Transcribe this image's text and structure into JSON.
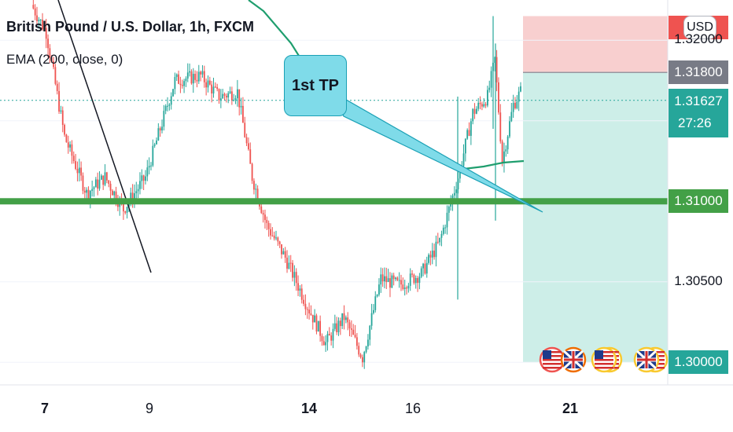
{
  "header": {
    "title": "British Pound / U.S. Dollar, 1h, FXCM",
    "ema_label": "EMA (200, close, 0)",
    "currency_button": "USD"
  },
  "annotation": {
    "text": "1st TP",
    "target_price": 1.31
  },
  "price_axis": {
    "labels": [
      {
        "value": "1.32000",
        "price": 1.32,
        "style": "plain"
      },
      {
        "value": "1.31800",
        "price": 1.318,
        "style": "gray"
      },
      {
        "value": "1.31627",
        "price": 1.31627,
        "style": "teal",
        "countdown": "27:26"
      },
      {
        "value": "1.31000",
        "price": 1.31,
        "style": "green"
      },
      {
        "value": "1.30500",
        "price": 1.305,
        "style": "plain"
      },
      {
        "value": "1.30000",
        "price": 1.3,
        "style": "teal"
      }
    ]
  },
  "time_axis": {
    "ticks": [
      {
        "label": "7",
        "bold": true
      },
      {
        "label": "9",
        "bold": false
      },
      {
        "label": "14",
        "bold": true
      },
      {
        "label": "16",
        "bold": false
      },
      {
        "label": "21",
        "bold": true
      }
    ]
  },
  "colors": {
    "up": "#26a69a",
    "down": "#ef5350",
    "ema": "#1f9e6e",
    "support": "#43a047",
    "stop_zone": "#f8cfcf",
    "target_zone": "#cdeee8",
    "current_price": "#26a69a",
    "callout": "#7fdbe9"
  },
  "chart_data": {
    "type": "candlestick",
    "title": "British Pound / U.S. Dollar, 1h, FXCM",
    "indicator": "EMA (200, close, 0)",
    "ylim": [
      1.2986,
      1.3225
    ],
    "horizontal_levels": [
      {
        "price": 1.31,
        "label": "1.31000"
      }
    ],
    "current_price": 1.31627,
    "short_position": {
      "entry": 1.318,
      "stop": 1.3215,
      "target": 1.3
    },
    "x_ticks": [
      "7",
      "9",
      "14",
      "16",
      "21"
    ],
    "close_path": [
      [
        0,
        1.3222
      ],
      [
        8,
        1.3205
      ],
      [
        18,
        1.314
      ],
      [
        30,
        1.3105
      ],
      [
        40,
        1.3115
      ],
      [
        50,
        1.3095
      ],
      [
        62,
        1.3115
      ],
      [
        78,
        1.3175
      ],
      [
        92,
        1.3178
      ],
      [
        102,
        1.3165
      ],
      [
        112,
        1.3168
      ],
      [
        120,
        1.3115
      ],
      [
        128,
        1.3085
      ],
      [
        138,
        1.3065
      ],
      [
        150,
        1.3035
      ],
      [
        160,
        1.3012
      ],
      [
        170,
        1.3028
      ],
      [
        180,
        1.3003
      ],
      [
        190,
        1.3052
      ],
      [
        200,
        1.3048
      ],
      [
        212,
        1.3055
      ],
      [
        222,
        1.3075
      ],
      [
        232,
        1.3115
      ],
      [
        240,
        1.3155
      ],
      [
        248,
        1.3165
      ],
      [
        252,
        1.3188
      ],
      [
        256,
        1.3125
      ],
      [
        262,
        1.316
      ],
      [
        266,
        1.3168
      ]
    ],
    "ema_points": [
      [
        1.6,
        1.3225
      ],
      [
        1.68,
        1.3207
      ],
      [
        1.84,
        1.3172
      ],
      [
        1.95,
        1.3155
      ],
      [
        2.07,
        1.3132
      ],
      [
        2.23,
        1.3123
      ],
      [
        2.38,
        1.3125
      ]
    ],
    "trendline": {
      "from": [
        0.47,
        1.3225
      ],
      "to": [
        1.09,
        1.3075
      ]
    }
  }
}
